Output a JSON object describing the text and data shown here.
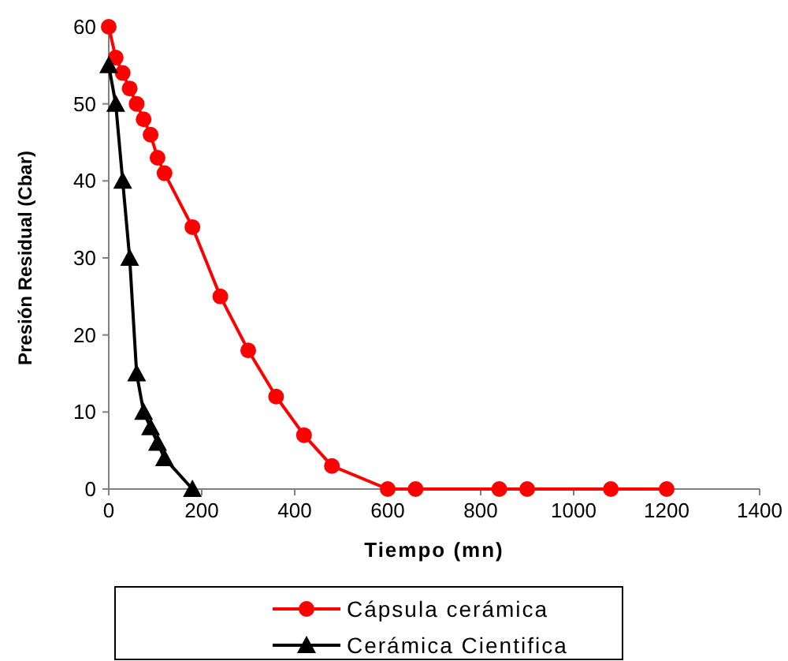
{
  "chart_data": {
    "type": "line",
    "xlabel": "Tiempo (mn)",
    "ylabel": "Presión Residual (Cbar)",
    "xlim": [
      0,
      1400
    ],
    "xticks": [
      0,
      200,
      400,
      600,
      800,
      1000,
      1200,
      1400
    ],
    "ylim": [
      0,
      60
    ],
    "yticks": [
      0,
      10,
      20,
      30,
      40,
      50,
      60
    ],
    "grid": false,
    "legend": "bottom",
    "line_style": "solid",
    "series": [
      {
        "name": "Cápsula cerámica",
        "color": "#ff0000",
        "marker": "circle",
        "x": [
          0,
          15,
          30,
          45,
          60,
          75,
          90,
          105,
          120,
          180,
          240,
          300,
          360,
          420,
          480,
          600,
          660,
          840,
          900,
          1080,
          1200
        ],
        "values": [
          60,
          56,
          54,
          52,
          50,
          48,
          46,
          43,
          41,
          34,
          25,
          18,
          12,
          7,
          3,
          0,
          0,
          0,
          0,
          0,
          0
        ]
      },
      {
        "name": "Cerámica Cientifica",
        "color": "#000000",
        "marker": "triangle",
        "x": [
          0,
          15,
          30,
          45,
          60,
          75,
          90,
          105,
          120,
          180
        ],
        "values": [
          55,
          50,
          40,
          30,
          15,
          10,
          8,
          6,
          4,
          0
        ]
      }
    ]
  }
}
